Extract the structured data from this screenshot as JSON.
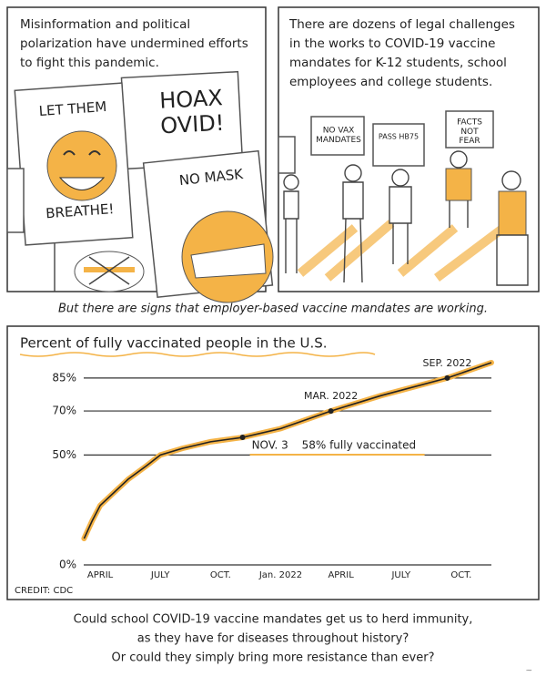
{
  "panels": [
    {
      "text": [
        "Misinformation and political",
        "polarization have undermined efforts",
        "to fight this pandemic."
      ],
      "signs": [
        [
          "LET THEM",
          "BREATHE!"
        ],
        [
          "HOAX",
          "OVID!"
        ],
        [
          "NO MASK"
        ]
      ]
    },
    {
      "text": [
        "There are dozens of legal challenges",
        "in the works to COVID-19 vaccine",
        "mandates for K-12 students, school",
        "employees and college students."
      ],
      "signs": [
        [
          "NO VAX",
          "MANDATES"
        ],
        [
          "PASS HB75"
        ],
        [
          "FACTS",
          "NOT",
          "FEAR"
        ]
      ]
    }
  ],
  "caption": "But there are signs that employer-based vaccine mandates are working.",
  "chart_data": {
    "type": "line",
    "title": "Percent of fully vaccinated people in the U.S.",
    "series": [
      {
        "color": "#222222",
        "highlight": "#f4b347",
        "x": [
          2.2,
          2.6,
          3,
          3.7,
          4.4,
          5.3,
          6,
          7.1,
          8.5,
          10.1,
          12,
          14.5,
          17,
          20.3,
          22.5
        ],
        "values": [
          12,
          20,
          27,
          33,
          39,
          45,
          50,
          53,
          56,
          58,
          62,
          70,
          77,
          85,
          92
        ]
      }
    ],
    "xlim": [
      2,
      23
    ],
    "xticks": [
      {
        "value": 3,
        "label": "APRIL"
      },
      {
        "value": 6,
        "label": "JULY"
      },
      {
        "value": 9,
        "label": "OCT."
      },
      {
        "value": 12,
        "label": "Jan. 2022"
      },
      {
        "value": 15,
        "label": "APRIL"
      },
      {
        "value": 18,
        "label": "JULY"
      },
      {
        "value": 21,
        "label": "OCT."
      }
    ],
    "ylim": [
      0,
      92
    ],
    "yticks": [
      {
        "value": 0,
        "label": "0%"
      },
      {
        "value": 50,
        "label": "50%"
      },
      {
        "value": 70,
        "label": "70%"
      },
      {
        "value": 85,
        "label": "85%"
      }
    ],
    "grid": true,
    "annotations": [
      {
        "label": "NOV. 3",
        "note": "58% fully vaccinated",
        "x": 10.1,
        "y": 58
      },
      {
        "label": "MAR. 2022",
        "x": 14.5,
        "y": 70
      },
      {
        "label": "SEP. 2022",
        "x": 20.3,
        "y": 85
      }
    ],
    "credit": "CREDIT: CDC"
  },
  "closing": [
    "Could school COVID-19 vaccine mandates get us to herd immunity,",
    "as they have for diseases throughout history?",
    "Or could they simply bring more resistance than ever?"
  ]
}
